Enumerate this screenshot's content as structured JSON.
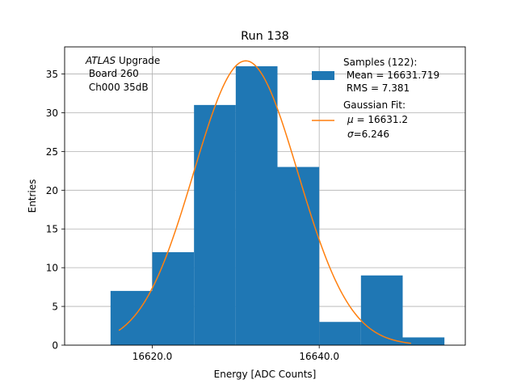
{
  "chart_data": {
    "type": "bar",
    "title": "Run 138",
    "xlabel": "Energy [ADC Counts]",
    "ylabel": "Entries",
    "xlim": [
      16609.5,
      16657.5
    ],
    "ylim": [
      0,
      38.5
    ],
    "grid": true,
    "xticks": [
      16620.0,
      16640.0
    ],
    "xtick_labels": [
      "16620.0",
      "16640.0"
    ],
    "yticks": [
      0,
      5,
      10,
      15,
      20,
      25,
      30,
      35
    ],
    "ytick_labels": [
      "0",
      "5",
      "10",
      "15",
      "20",
      "25",
      "30",
      "35"
    ],
    "histogram": {
      "name": "Samples",
      "color": "#1f77b4",
      "bin_edges": [
        16615,
        16620,
        16625,
        16630,
        16635,
        16640,
        16645,
        16650,
        16655
      ],
      "counts": [
        7,
        12,
        31,
        36,
        23,
        3,
        9,
        1
      ]
    },
    "fit": {
      "name": "Gaussian Fit",
      "color": "#ff7f0e",
      "amplitude": 36.7,
      "mu": 16631.2,
      "sigma": 6.246,
      "x_range": [
        16616,
        16651
      ]
    },
    "annotation": {
      "italic": "ATLAS",
      "normal": " Upgrade",
      "lines": [
        " Board 260",
        " Ch000 35dB"
      ]
    },
    "legend": {
      "position": "top-right",
      "entries": [
        {
          "kind": "patch",
          "lines": [
            "Samples (122):",
            " Mean = 16631.719",
            " RMS = 7.381"
          ]
        },
        {
          "kind": "line",
          "title": "Gaussian Fit:",
          "mu_prefix": "μ",
          "mu_text": " = 16631.2",
          "sigma_prefix": "σ",
          "sigma_text": "=6.246"
        }
      ]
    }
  }
}
